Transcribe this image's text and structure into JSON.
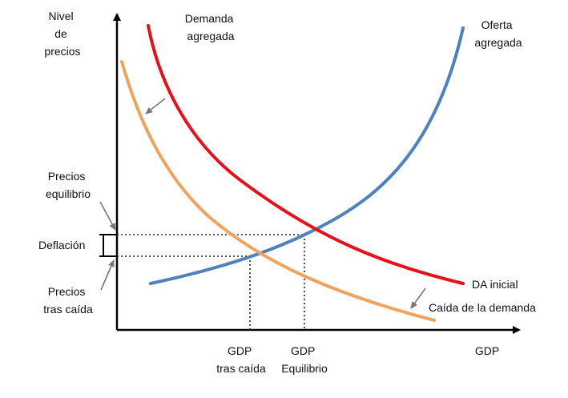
{
  "labels": {
    "y_axis": [
      "Nivel",
      "de",
      "precios"
    ],
    "x_axis": "GDP",
    "demand_title": [
      "Demanda",
      "agregada"
    ],
    "supply_title": [
      "Oferta",
      "agregada"
    ],
    "demand_initial": "DA inicial",
    "demand_fall": "Caída de la demanda",
    "price_equilibrium": [
      "Precios",
      "equilibrio"
    ],
    "deflation": "Deflación",
    "price_after_fall": [
      "Precios",
      "tras caída"
    ],
    "gdp_after_fall": [
      "GDP",
      "tras caída"
    ],
    "gdp_equilibrium": [
      "GDP",
      "Equilibrio"
    ]
  },
  "colors": {
    "demand_initial": "#e3121b",
    "demand_fall": "#f0a35e",
    "supply": "#4f81bd",
    "axis": "#000000",
    "pointer_arrow": "#777777"
  }
}
